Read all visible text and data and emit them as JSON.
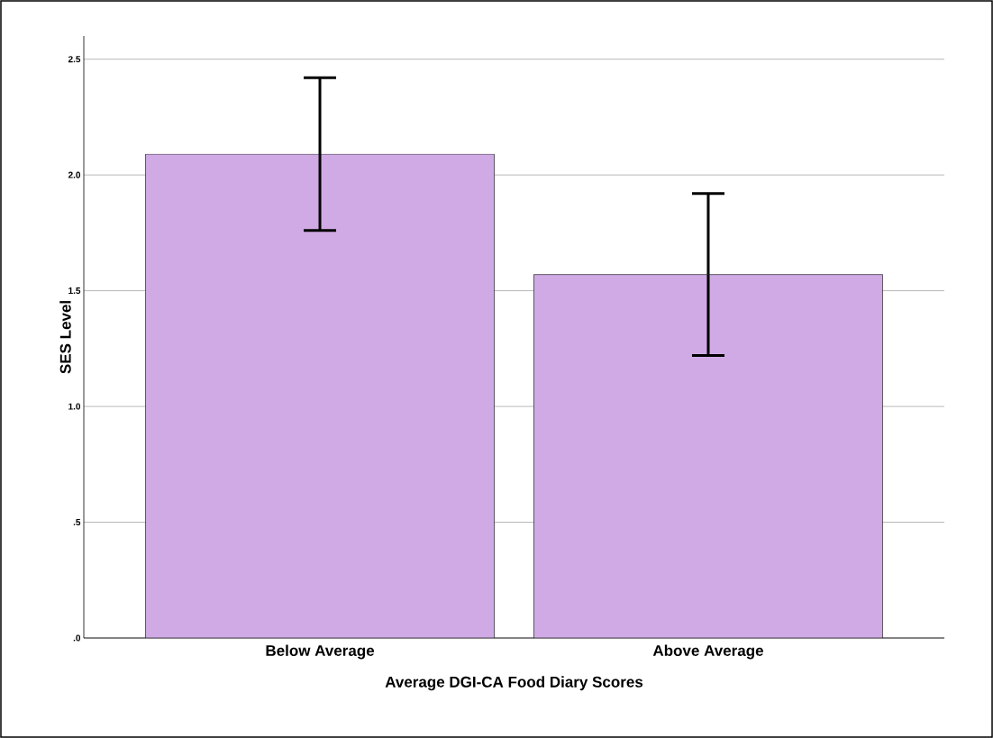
{
  "chart_data": {
    "type": "bar",
    "xlabel": "Average DGI-CA Food Diary Scores",
    "ylabel": "SES Level",
    "categories": [
      "Below Average",
      "Above Average"
    ],
    "values": [
      2.09,
      1.57
    ],
    "errors": [
      [
        1.76,
        2.42
      ],
      [
        1.22,
        1.92
      ]
    ],
    "color": "#d0aae4",
    "ylim": [
      0,
      2.6
    ],
    "yticks": [
      {
        "value": 0,
        "label": ".0"
      },
      {
        "value": 0.5,
        "label": ".5"
      },
      {
        "value": 1,
        "label": "1.0"
      },
      1.5,
      {
        "value": 2,
        "label": "2.0"
      },
      2.5
    ],
    "grid": "y"
  }
}
